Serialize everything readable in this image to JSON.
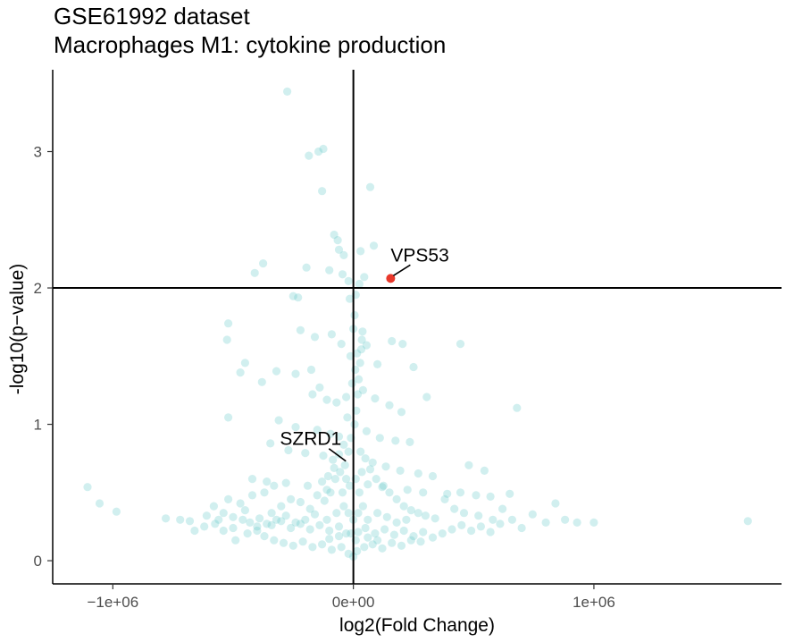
{
  "chart_data": {
    "type": "scatter",
    "title": "GSE61992 dataset",
    "subtitle": "Macrophages M1: cytokine production",
    "xlabel": "log2(Fold Change)",
    "ylabel": "-log10(p−value)",
    "xlim": [
      -1250000,
      1780000
    ],
    "ylim": [
      -0.17,
      3.6
    ],
    "x_ticks": [
      -1000000,
      0,
      1000000
    ],
    "x_tick_labels": [
      "−1e+06",
      "0e+00",
      "1e+06"
    ],
    "y_ticks": [
      0,
      1,
      2,
      3
    ],
    "y_tick_labels": [
      "0",
      "1",
      "2",
      "3"
    ],
    "threshold_y": 2,
    "threshold_x": 0,
    "grid": false,
    "point_color": "#5bc4c4",
    "highlight_color": "#e8382b",
    "highlighted": [
      {
        "label": "VPS53",
        "x": 155000,
        "y": 2.07,
        "significant": true
      },
      {
        "label": "SZRD1",
        "x": -20000,
        "y": 0.73,
        "significant": false
      }
    ],
    "points": [
      [
        -275000,
        3.44
      ],
      [
        -125000,
        3.02
      ],
      [
        -145000,
        3.0
      ],
      [
        -185000,
        2.97
      ],
      [
        70000,
        2.74
      ],
      [
        -130000,
        2.71
      ],
      [
        -80000,
        2.39
      ],
      [
        -65000,
        2.35
      ],
      [
        85000,
        2.31
      ],
      [
        30000,
        2.27
      ],
      [
        -60000,
        2.28
      ],
      [
        -40000,
        2.24
      ],
      [
        -375000,
        2.18
      ],
      [
        -410000,
        2.11
      ],
      [
        -195000,
        2.15
      ],
      [
        -100000,
        2.13
      ],
      [
        -45000,
        2.1
      ],
      [
        45000,
        2.08
      ],
      [
        -20000,
        2.05
      ],
      [
        25000,
        2.03
      ],
      [
        -250000,
        1.94
      ],
      [
        -230000,
        1.93
      ],
      [
        10000,
        1.95
      ],
      [
        -15000,
        1.92
      ],
      [
        -520000,
        1.74
      ],
      [
        -525000,
        1.62
      ],
      [
        -220000,
        1.69
      ],
      [
        -160000,
        1.64
      ],
      [
        -90000,
        1.66
      ],
      [
        -50000,
        1.59
      ],
      [
        35000,
        1.62
      ],
      [
        55000,
        1.58
      ],
      [
        160000,
        1.61
      ],
      [
        205000,
        1.59
      ],
      [
        445000,
        1.59
      ],
      [
        -450000,
        1.45
      ],
      [
        -470000,
        1.38
      ],
      [
        -320000,
        1.39
      ],
      [
        -240000,
        1.37
      ],
      [
        -175000,
        1.4
      ],
      [
        100000,
        1.44
      ],
      [
        250000,
        1.42
      ],
      [
        -380000,
        1.31
      ],
      [
        -140000,
        1.27
      ],
      [
        -170000,
        1.22
      ],
      [
        -110000,
        1.18
      ],
      [
        -70000,
        1.16
      ],
      [
        -30000,
        1.2
      ],
      [
        40000,
        1.25
      ],
      [
        90000,
        1.19
      ],
      [
        150000,
        1.14
      ],
      [
        200000,
        1.09
      ],
      [
        305000,
        1.2
      ],
      [
        680000,
        1.12
      ],
      [
        -520000,
        1.05
      ],
      [
        -310000,
        1.03
      ],
      [
        -240000,
        0.98
      ],
      [
        -150000,
        0.96
      ],
      [
        -95000,
        0.93
      ],
      [
        -60000,
        0.91
      ],
      [
        55000,
        0.95
      ],
      [
        110000,
        0.9
      ],
      [
        175000,
        0.88
      ],
      [
        235000,
        0.87
      ],
      [
        -345000,
        0.86
      ],
      [
        -270000,
        0.81
      ],
      [
        -200000,
        0.79
      ],
      [
        -125000,
        0.77
      ],
      [
        -85000,
        0.74
      ],
      [
        80000,
        0.72
      ],
      [
        135000,
        0.69
      ],
      [
        195000,
        0.66
      ],
      [
        270000,
        0.64
      ],
      [
        330000,
        0.62
      ],
      [
        480000,
        0.7
      ],
      [
        545000,
        0.66
      ],
      [
        -420000,
        0.6
      ],
      [
        -360000,
        0.58
      ],
      [
        -280000,
        0.57
      ],
      [
        -190000,
        0.55
      ],
      [
        -110000,
        0.52
      ],
      [
        60000,
        0.56
      ],
      [
        120000,
        0.54
      ],
      [
        225000,
        0.52
      ],
      [
        290000,
        0.5
      ],
      [
        390000,
        0.49
      ],
      [
        445000,
        0.5
      ],
      [
        510000,
        0.48
      ],
      [
        570000,
        0.47
      ],
      [
        650000,
        0.49
      ],
      [
        -1105000,
        0.54
      ],
      [
        -1055000,
        0.42
      ],
      [
        -985000,
        0.36
      ],
      [
        -780000,
        0.31
      ],
      [
        -720000,
        0.3
      ],
      [
        -680000,
        0.29
      ],
      [
        -610000,
        0.33
      ],
      [
        -575000,
        0.27
      ],
      [
        -540000,
        0.35
      ],
      [
        -500000,
        0.32
      ],
      [
        -460000,
        0.3
      ],
      [
        -430000,
        0.28
      ],
      [
        -390000,
        0.31
      ],
      [
        -340000,
        0.26
      ],
      [
        -300000,
        0.29
      ],
      [
        -260000,
        0.24
      ],
      [
        -220000,
        0.27
      ],
      [
        -180000,
        0.23
      ],
      [
        -140000,
        0.26
      ],
      [
        -100000,
        0.22
      ],
      [
        -60000,
        0.25
      ],
      [
        -30000,
        0.2
      ],
      [
        20000,
        0.21
      ],
      [
        50000,
        0.24
      ],
      [
        90000,
        0.2
      ],
      [
        130000,
        0.23
      ],
      [
        170000,
        0.19
      ],
      [
        210000,
        0.22
      ],
      [
        250000,
        0.18
      ],
      [
        290000,
        0.21
      ],
      [
        330000,
        0.17
      ],
      [
        370000,
        0.2
      ],
      [
        410000,
        0.23
      ],
      [
        450000,
        0.26
      ],
      [
        490000,
        0.22
      ],
      [
        530000,
        0.25
      ],
      [
        570000,
        0.21
      ],
      [
        610000,
        0.27
      ],
      [
        660000,
        0.3
      ],
      [
        700000,
        0.24
      ],
      [
        745000,
        0.34
      ],
      [
        800000,
        0.28
      ],
      [
        840000,
        0.42
      ],
      [
        880000,
        0.3
      ],
      [
        930000,
        0.28
      ],
      [
        1000000,
        0.28
      ],
      [
        1640000,
        0.29
      ],
      [
        -370000,
        0.18
      ],
      [
        -330000,
        0.15
      ],
      [
        -290000,
        0.13
      ],
      [
        -250000,
        0.11
      ],
      [
        -210000,
        0.14
      ],
      [
        -170000,
        0.1
      ],
      [
        -130000,
        0.12
      ],
      [
        -90000,
        0.08
      ],
      [
        -50000,
        0.1
      ],
      [
        -20000,
        0.05
      ],
      [
        0,
        0.03
      ],
      [
        15000,
        0.07
      ],
      [
        45000,
        0.1
      ],
      [
        80000,
        0.12
      ],
      [
        120000,
        0.09
      ],
      [
        160000,
        0.13
      ],
      [
        200000,
        0.11
      ],
      [
        240000,
        0.15
      ],
      [
        280000,
        0.14
      ],
      [
        -540000,
        0.22
      ],
      [
        -490000,
        0.15
      ],
      [
        -440000,
        0.2
      ],
      [
        -400000,
        0.25
      ],
      [
        -340000,
        0.35
      ],
      [
        -300000,
        0.4
      ],
      [
        -260000,
        0.45
      ],
      [
        -220000,
        0.43
      ],
      [
        -180000,
        0.38
      ],
      [
        -150000,
        0.48
      ],
      [
        -120000,
        0.44
      ],
      [
        -95000,
        0.5
      ],
      [
        -75000,
        0.6
      ],
      [
        -55000,
        0.65
      ],
      [
        -35000,
        0.7
      ],
      [
        -20000,
        0.8
      ],
      [
        -10000,
        0.9
      ],
      [
        5000,
        1.0
      ],
      [
        12000,
        1.1
      ],
      [
        18000,
        1.22
      ],
      [
        22000,
        1.33
      ],
      [
        28000,
        1.45
      ],
      [
        33000,
        1.55
      ],
      [
        38000,
        1.68
      ],
      [
        -5000,
        1.3
      ],
      [
        8000,
        1.4
      ],
      [
        15000,
        1.52
      ],
      [
        0,
        1.7
      ],
      [
        5000,
        1.8
      ],
      [
        -12000,
        1.5
      ],
      [
        -25000,
        1.05
      ],
      [
        -40000,
        0.85
      ],
      [
        -60000,
        0.78
      ],
      [
        -80000,
        0.68
      ],
      [
        -105000,
        0.62
      ],
      [
        -130000,
        0.58
      ],
      [
        30000,
        0.8
      ],
      [
        50000,
        0.75
      ],
      [
        70000,
        0.67
      ],
      [
        95000,
        0.6
      ],
      [
        125000,
        0.55
      ],
      [
        150000,
        0.5
      ],
      [
        180000,
        0.45
      ],
      [
        210000,
        0.4
      ],
      [
        240000,
        0.37
      ],
      [
        270000,
        0.35
      ],
      [
        300000,
        0.33
      ],
      [
        340000,
        0.31
      ],
      [
        -160000,
        0.34
      ],
      [
        -200000,
        0.3
      ],
      [
        -240000,
        0.28
      ],
      [
        -280000,
        0.33
      ],
      [
        -320000,
        0.3
      ],
      [
        -360000,
        0.27
      ],
      [
        -400000,
        0.22
      ],
      [
        -450000,
        0.37
      ],
      [
        -500000,
        0.24
      ],
      [
        -560000,
        0.3
      ],
      [
        -620000,
        0.25
      ],
      [
        -660000,
        0.22
      ],
      [
        -40000,
        0.4
      ],
      [
        -20000,
        0.35
      ],
      [
        0,
        0.3
      ],
      [
        20000,
        0.35
      ],
      [
        40000,
        0.4
      ],
      [
        60000,
        0.3
      ],
      [
        -70000,
        0.35
      ],
      [
        -110000,
        0.3
      ],
      [
        100000,
        0.35
      ],
      [
        140000,
        0.32
      ],
      [
        180000,
        0.28
      ],
      [
        220000,
        0.3
      ],
      [
        -15000,
        0.55
      ],
      [
        10000,
        0.6
      ],
      [
        25000,
        0.5
      ],
      [
        -30000,
        0.6
      ],
      [
        35000,
        0.65
      ],
      [
        -45000,
        0.5
      ],
      [
        -10000,
        0.2
      ],
      [
        10000,
        0.15
      ],
      [
        -60000,
        0.18
      ],
      [
        60000,
        0.17
      ],
      [
        -100000,
        0.16
      ],
      [
        100000,
        0.15
      ],
      [
        380000,
        0.45
      ],
      [
        420000,
        0.38
      ],
      [
        460000,
        0.35
      ],
      [
        520000,
        0.33
      ],
      [
        580000,
        0.3
      ],
      [
        620000,
        0.38
      ],
      [
        -580000,
        0.4
      ],
      [
        -520000,
        0.45
      ],
      [
        -470000,
        0.42
      ],
      [
        -420000,
        0.48
      ],
      [
        -370000,
        0.5
      ],
      [
        -330000,
        0.55
      ]
    ]
  }
}
